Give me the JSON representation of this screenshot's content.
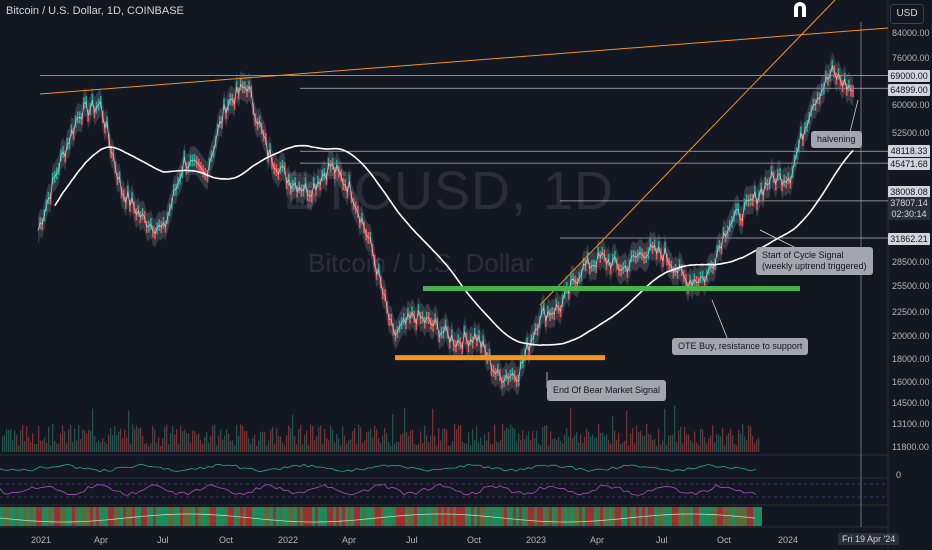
{
  "header": {
    "title": "Bitcoin / U.S. Dollar, 1D, COINBASE",
    "currency": "USD"
  },
  "watermark": {
    "symbol": "BTCUSD, 1D",
    "name": "Bitcoin / U.S. Dollar"
  },
  "logo_icon": "magnet-icon",
  "price_labels": [
    {
      "text": "69000.00",
      "dark": false
    },
    {
      "text": "64899.00",
      "dark": false
    },
    {
      "text": "48118.33",
      "dark": false
    },
    {
      "text": "45471.68",
      "dark": false
    },
    {
      "text": "38008.08",
      "dark": false
    },
    {
      "text": "37807.14",
      "dark": true
    },
    {
      "text": "02:30:14",
      "dark": true
    },
    {
      "text": "31862.21",
      "dark": false
    }
  ],
  "y_axis": [
    "84000.00",
    "76000.00",
    "60000.00",
    "52500.00",
    "28500.00",
    "25500.00",
    "22500.00",
    "20000.00",
    "18000.00",
    "16000.00",
    "14500.00",
    "13100.00",
    "11800.00"
  ],
  "lower_axis_zero": "0",
  "x_axis": [
    "2021",
    "Apr",
    "Jul",
    "Oct",
    "2022",
    "Apr",
    "Jul",
    "Oct",
    "2023",
    "Apr",
    "Jul",
    "Oct",
    "2024"
  ],
  "crosshair_date": "Fri 19 Apr '24",
  "annotations": [
    {
      "id": "halvening",
      "text": "halvening"
    },
    {
      "id": "start_cycle",
      "line1": "Start of Cycle Signal",
      "line2": "(weekly uptrend triggered)"
    },
    {
      "id": "ote",
      "text": "OTE Buy, resistance to support"
    },
    {
      "id": "bear_end",
      "text": "End Of Bear Market Signal"
    }
  ],
  "colors": {
    "background": "#131722",
    "trendline": "#f7931a",
    "support": "#4caf50",
    "resistance_zone": "#f7931a",
    "ma": "#ffffff",
    "band": "#787b86",
    "upper_candle": "#26a69a",
    "lower_candle": "#ef5350"
  },
  "chart_data": {
    "type": "line",
    "title": "Bitcoin / U.S. Dollar, 1D, COINBASE",
    "scale": "log",
    "ylim": [
      11800,
      84000
    ],
    "x": [
      "2021-01",
      "2021-02",
      "2021-03",
      "2021-04",
      "2021-05",
      "2021-06",
      "2021-07",
      "2021-08",
      "2021-09",
      "2021-10",
      "2021-11",
      "2021-12",
      "2022-01",
      "2022-02",
      "2022-03",
      "2022-04",
      "2022-05",
      "2022-06",
      "2022-07",
      "2022-08",
      "2022-09",
      "2022-10",
      "2022-11",
      "2022-12",
      "2023-01",
      "2023-02",
      "2023-03",
      "2023-04",
      "2023-05",
      "2023-06",
      "2023-07",
      "2023-08",
      "2023-09",
      "2023-10",
      "2023-11",
      "2023-12",
      "2024-01",
      "2024-02",
      "2024-03",
      "2024-04"
    ],
    "series": [
      {
        "values": [
          33000,
          45000,
          58000,
          60000,
          40000,
          35000,
          33000,
          46000,
          43000,
          60000,
          66000,
          48000,
          42000,
          40000,
          45000,
          40000,
          30000,
          20000,
          22000,
          21000,
          19500,
          20000,
          16500,
          16800,
          22000,
          23000,
          27500,
          29000,
          27500,
          30000,
          29500,
          26000,
          26500,
          34000,
          37000,
          42000,
          43000,
          60000,
          70000,
          64000
        ]
      }
    ],
    "levels": [
      69000,
      64899,
      48118.33,
      45471.68,
      38008.08,
      37807.14,
      31862.21
    ],
    "support_zone": 25000,
    "bear_zone": 18000
  }
}
